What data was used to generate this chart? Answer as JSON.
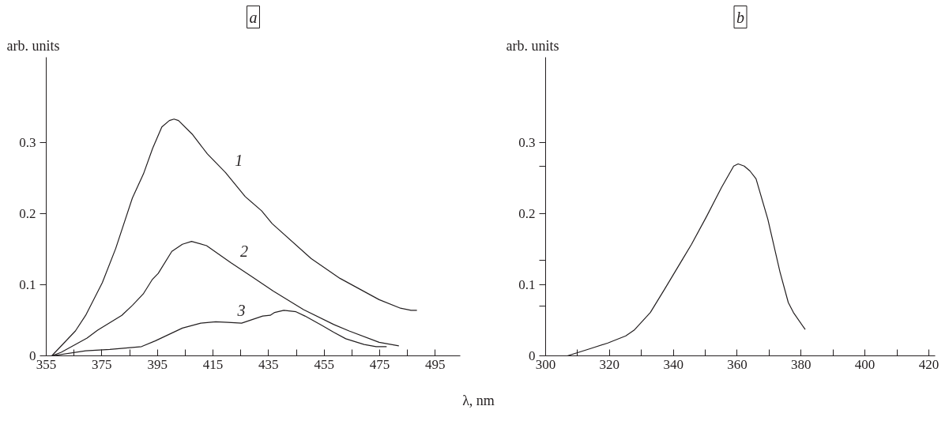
{
  "chart_data": [
    {
      "type": "line",
      "title": "a",
      "ylabel": "arb. units",
      "xlim": [
        355,
        504
      ],
      "ylim": [
        0,
        0.42
      ],
      "grid": false,
      "legend": false,
      "line_style": "solid",
      "marker": "none",
      "xticks": [
        355,
        {
          "value": 365,
          "label": null
        },
        375,
        {
          "value": 385,
          "label": null
        },
        395,
        {
          "value": 405,
          "label": null
        },
        415,
        {
          "value": 425,
          "label": null
        },
        435,
        {
          "value": 445,
          "label": null
        },
        455,
        {
          "value": 465,
          "label": null
        },
        475,
        {
          "value": 485,
          "label": null
        },
        495
      ],
      "yticks": [
        0,
        0.1,
        0.2,
        0.3
      ],
      "series": [
        {
          "name": "1",
          "color": "#231f20",
          "x": [
            357,
            365.5,
            369.2,
            375.2,
            380,
            386,
            390,
            393.3,
            396.6,
            399.3,
            401,
            402.6,
            407.5,
            413,
            419.5,
            426.6,
            432.5,
            436.3,
            450.3,
            460.7,
            474.8,
            482.5,
            486.3,
            488.4
          ],
          "values": [
            0,
            0.035,
            0.057,
            0.103,
            0.151,
            0.222,
            0.256,
            0.292,
            0.322,
            0.331,
            0.333,
            0.331,
            0.312,
            0.284,
            0.258,
            0.224,
            0.204,
            0.186,
            0.137,
            0.109,
            0.079,
            0.067,
            0.064,
            0.064
          ]
        },
        {
          "name": "2",
          "color": "#231f20",
          "x": [
            357,
            360.4,
            369.7,
            373.5,
            382.2,
            386,
            389.9,
            393.1,
            395.3,
            400.2,
            404,
            407.3,
            412.7,
            421.4,
            429.1,
            436.7,
            447.6,
            458.5,
            464,
            474.8,
            481.9
          ],
          "values": [
            0,
            0.005,
            0.025,
            0.036,
            0.057,
            0.071,
            0.087,
            0.107,
            0.116,
            0.147,
            0.157,
            0.161,
            0.155,
            0.131,
            0.111,
            0.091,
            0.065,
            0.044,
            0.035,
            0.019,
            0.014
          ]
        },
        {
          "name": "3",
          "color": "#231f20",
          "x": [
            357,
            369.2,
            377.9,
            389.3,
            394.2,
            404,
            410.6,
            416,
            420.4,
            425.3,
            432.9,
            435.6,
            437.2,
            440.5,
            444.9,
            448.1,
            454.1,
            458.5,
            462.8,
            469.4,
            473.7,
            477.5
          ],
          "values": [
            0,
            0.007,
            0.009,
            0.013,
            0.021,
            0.039,
            0.046,
            0.048,
            0.047,
            0.046,
            0.056,
            0.057,
            0.061,
            0.064,
            0.062,
            0.056,
            0.043,
            0.033,
            0.024,
            0.016,
            0.013,
            0.013
          ]
        }
      ]
    },
    {
      "type": "line",
      "title": "b",
      "ylabel": "arb. units",
      "xlabel": "λ, nm",
      "xlim": [
        300,
        422
      ],
      "ylim": [
        0,
        0.42
      ],
      "grid": false,
      "legend": false,
      "line_style": "solid",
      "marker": "none",
      "xticks": [
        300,
        {
          "value": 310,
          "label": null
        },
        320,
        {
          "value": 330,
          "label": null
        },
        340,
        {
          "value": 350,
          "label": null
        },
        360,
        {
          "value": 370,
          "label": null
        },
        380,
        {
          "value": 390,
          "label": null
        },
        400,
        {
          "value": 410,
          "label": null
        },
        420
      ],
      "yticks": [
        0,
        {
          "value": 0.07,
          "label": null
        },
        0.1,
        {
          "value": 0.135,
          "label": null
        },
        0.2,
        {
          "value": 0.267,
          "label": null
        },
        0.3
      ],
      "series": [
        {
          "color": "#231f20",
          "x": [
            306.8,
            313.9,
            319.5,
            325.1,
            327.7,
            332.8,
            337.3,
            342.9,
            345.7,
            350.4,
            355.1,
            358.9,
            360.3,
            362.2,
            364,
            365.9,
            369.6,
            373.4,
            376,
            377.6,
            381.3
          ],
          "values": [
            0,
            0.01,
            0.018,
            0.028,
            0.036,
            0.061,
            0.094,
            0.136,
            0.157,
            0.196,
            0.237,
            0.267,
            0.27,
            0.267,
            0.26,
            0.249,
            0.192,
            0.118,
            0.075,
            0.061,
            0.037
          ]
        }
      ]
    }
  ]
}
